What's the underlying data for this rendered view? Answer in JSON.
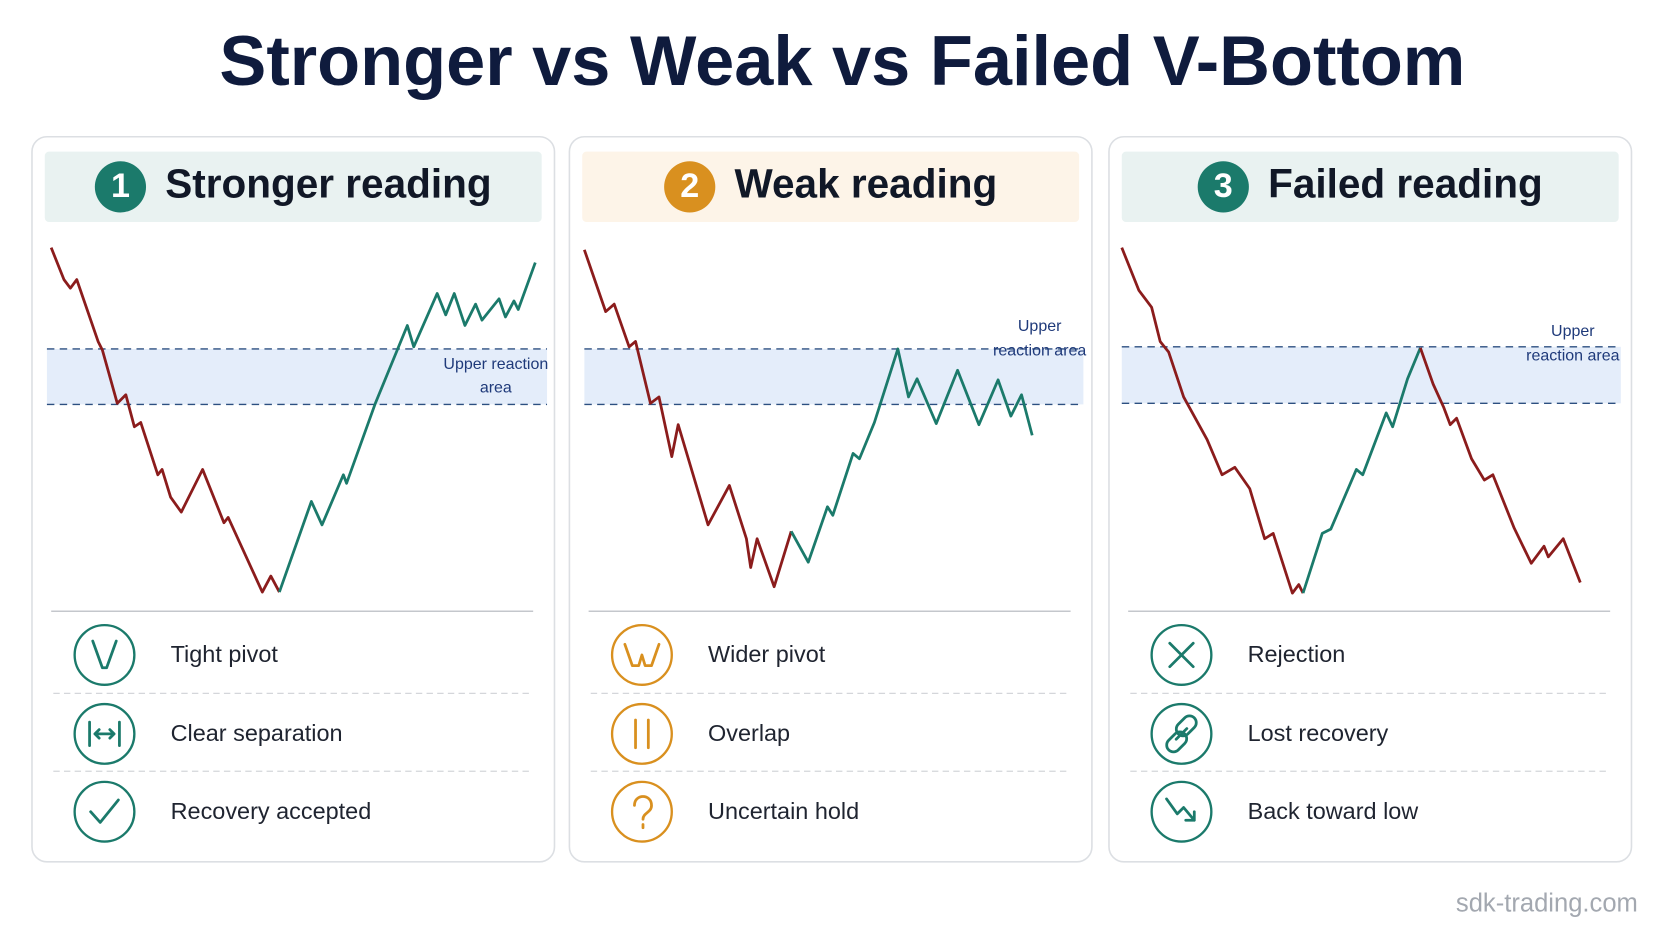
{
  "title": "Stronger vs Weak vs Failed V-Bottom",
  "panels": [
    {
      "number": "1",
      "heading": "Stronger reading",
      "zone_label": [
        "Upper reaction",
        "area"
      ],
      "items": [
        "Tight pivot",
        "Clear separation",
        "Recovery accepted"
      ]
    },
    {
      "number": "2",
      "heading": "Weak reading",
      "zone_label": [
        "Upper",
        "reaction area"
      ],
      "items": [
        "Wider pivot",
        "Overlap",
        "Uncertain hold"
      ]
    },
    {
      "number": "3",
      "heading": "Failed reading",
      "zone_label": [
        "Upper",
        "reaction area"
      ],
      "items": [
        "Rejection",
        "Lost recovery",
        "Back toward low"
      ]
    }
  ],
  "footer": "sdk-trading.com"
}
